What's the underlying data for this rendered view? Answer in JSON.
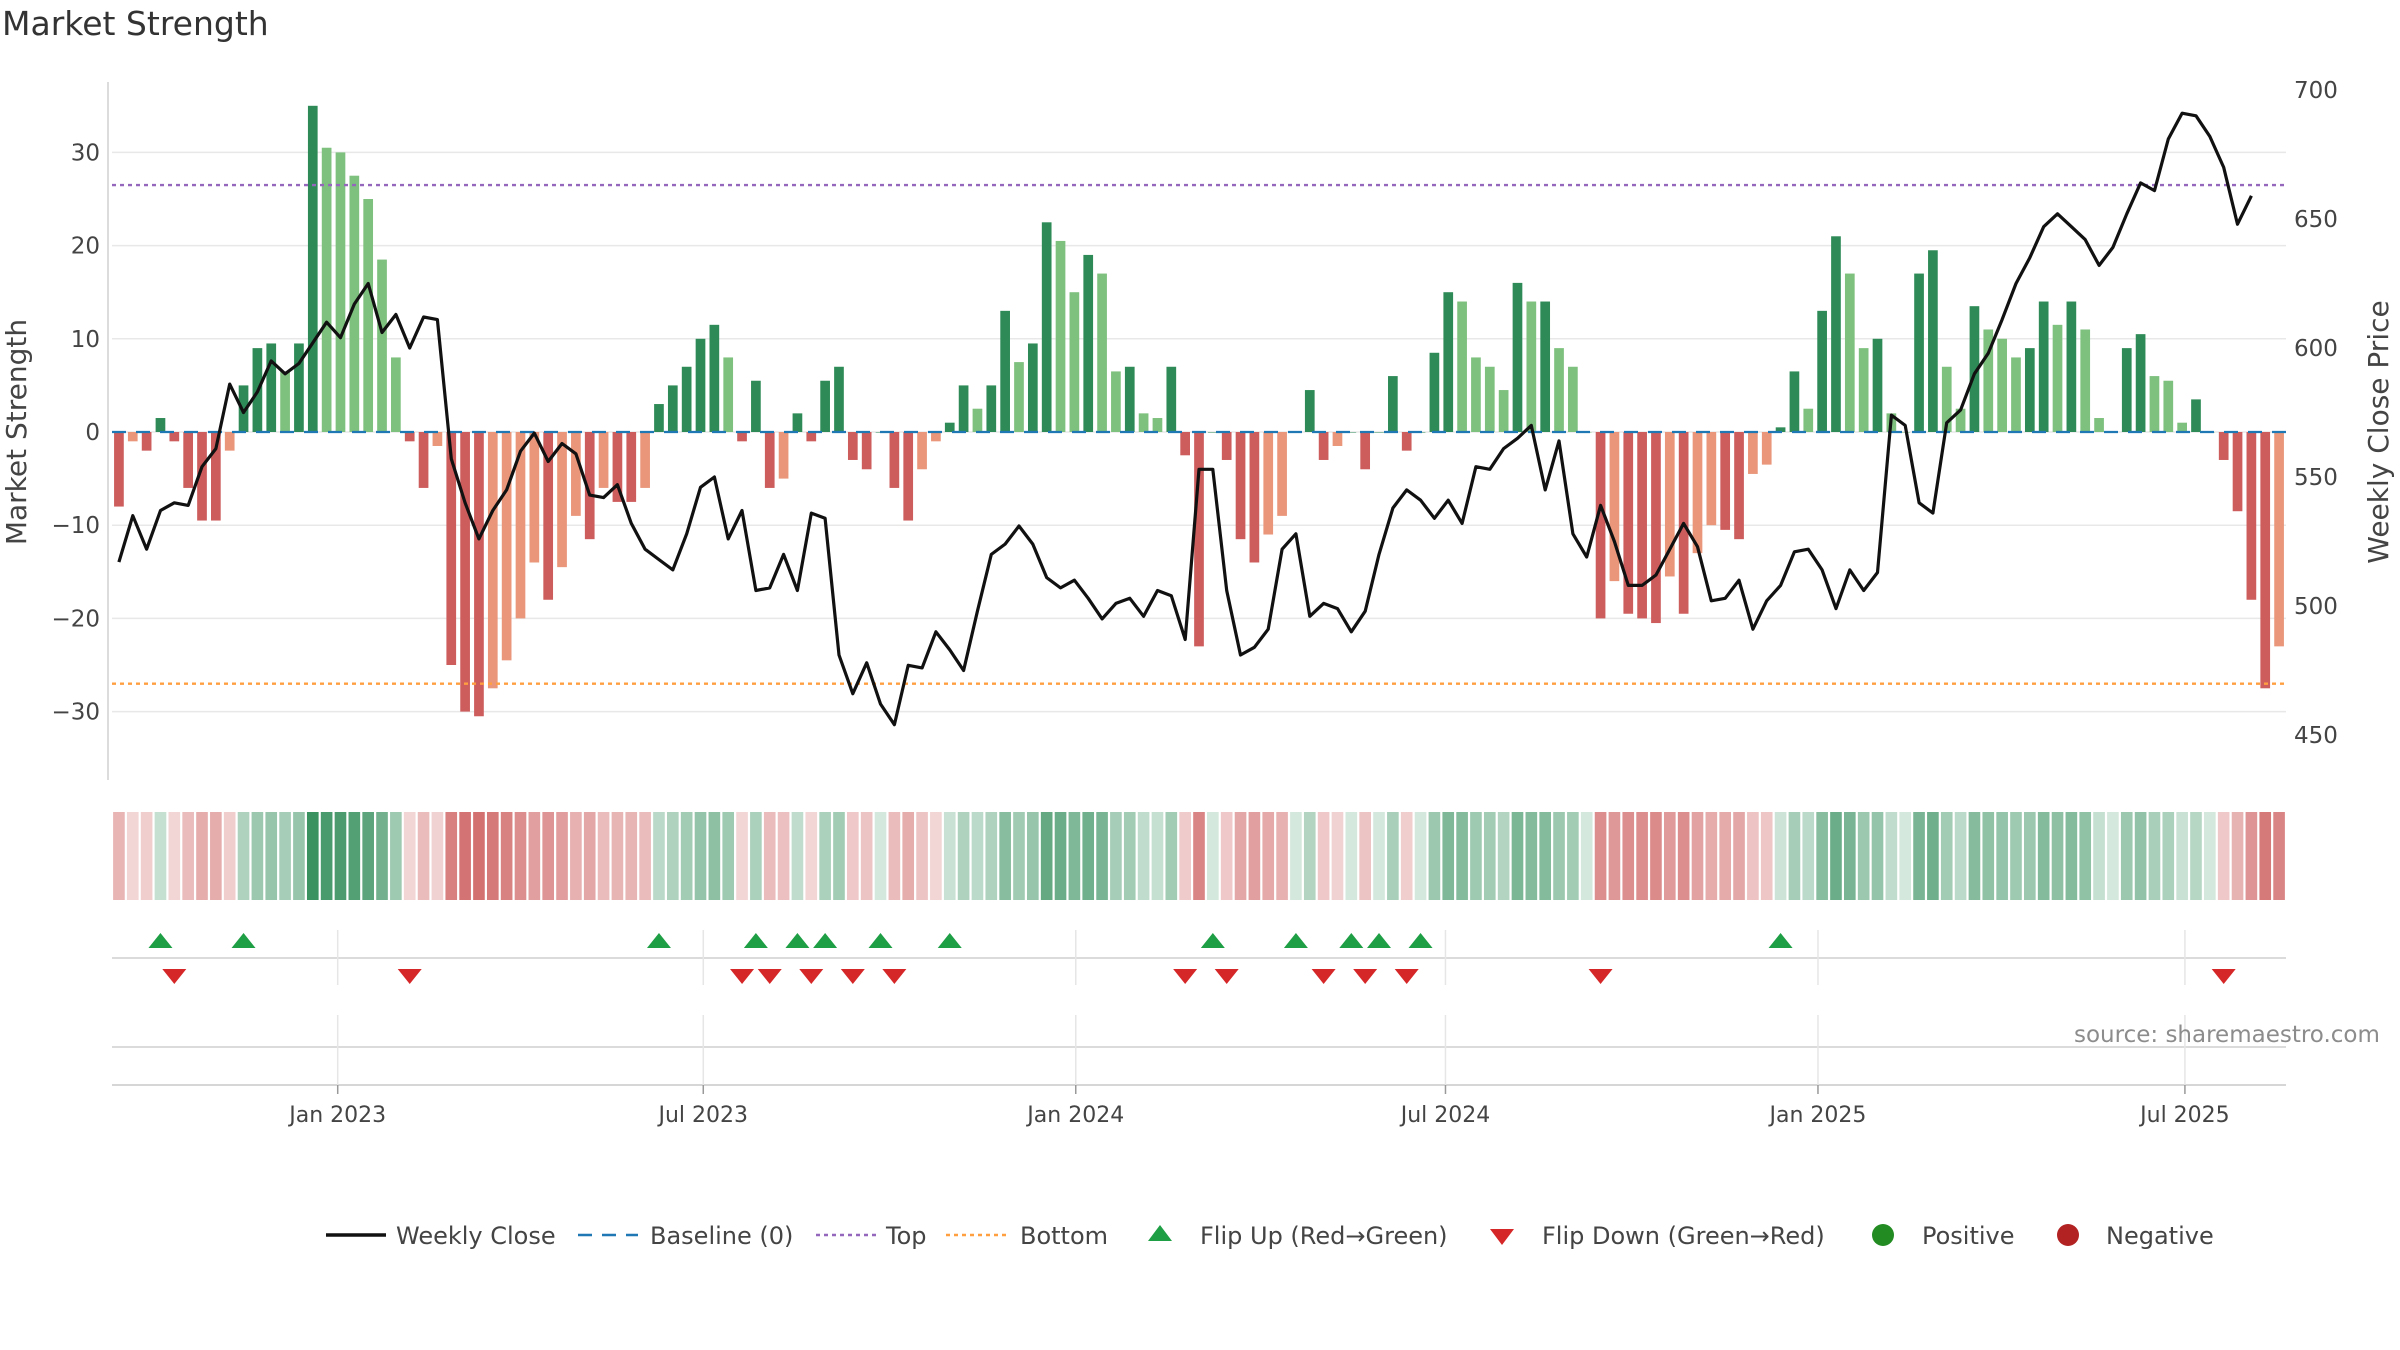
{
  "chart_data": {
    "type": "bar+line",
    "title": "Market Strength",
    "ylabel_left": "Market Strength",
    "ylabel_right": "Weekly Close Price",
    "source": "source: sharemaestro.com",
    "y_left_ticks": [
      30,
      20,
      10,
      0,
      -10,
      -20,
      -30
    ],
    "y_left_tick_labels": [
      "30",
      "20",
      "10",
      "0",
      "−10",
      "−20",
      "−30"
    ],
    "ylim_left": [
      -37.5,
      37.5
    ],
    "y_right_ticks": [
      700,
      650,
      600,
      550,
      500,
      450
    ],
    "ylim_right": [
      440,
      705
    ],
    "top_level": 26.5,
    "bottom_level": -27,
    "x_tick_labels": [
      "Jan 2023",
      "Jul 2023",
      "Jan 2024",
      "Jul 2024",
      "Jan 2025",
      "Jul 2025"
    ],
    "x_tick_positions": [
      16.3,
      42.7,
      69.6,
      96.3,
      123.2,
      149.7
    ],
    "strength": [
      -8,
      -1,
      -2,
      1.5,
      -1,
      -6,
      -9.5,
      -9.5,
      -2,
      5,
      9,
      9.5,
      6.5,
      9.5,
      35,
      30.5,
      30,
      27.5,
      25,
      18.5,
      8,
      -1,
      -6,
      -1.5,
      -25,
      -30,
      -30.5,
      -27.5,
      -24.5,
      -20,
      -14,
      -18,
      -14.5,
      -9,
      -11.5,
      -6,
      -7.5,
      -7.5,
      -6,
      3,
      5,
      7,
      10,
      11.5,
      8,
      -1,
      5.5,
      -6,
      -5,
      2,
      -1,
      5.5,
      7,
      -3,
      -4,
      0,
      -6,
      -9.5,
      -4,
      -1,
      1,
      5,
      2.5,
      5,
      13,
      7.5,
      9.5,
      22.5,
      20.5,
      15,
      19,
      17,
      6.5,
      7,
      2,
      1.5,
      7,
      -2.5,
      -23,
      0,
      -3,
      -11.5,
      -14,
      -11,
      -9,
      0,
      4.5,
      -3,
      -1.5,
      0,
      -4,
      0,
      6,
      -2,
      0,
      8.5,
      15,
      14,
      8,
      7,
      4.5,
      16,
      14,
      14,
      9,
      7,
      0,
      -20,
      -16,
      -19.5,
      -20,
      -20.5,
      -15.5,
      -19.5,
      -13,
      -10,
      -10.5,
      -11.5,
      -4.5,
      -3.5,
      0.5,
      6.5,
      2.5,
      13,
      21,
      17,
      9,
      10,
      2,
      0,
      17,
      19.5,
      7,
      2.5,
      13.5,
      11,
      10,
      8,
      9,
      14,
      11.5,
      14,
      11,
      1.5,
      0,
      9,
      10.5,
      6,
      5.5,
      1,
      3.5,
      0,
      -3,
      -8.5,
      -18,
      -27.5,
      -23
    ],
    "weekly_close": [
      517,
      535,
      522,
      537,
      540,
      539,
      554,
      561,
      586,
      575,
      583,
      595,
      590,
      594,
      602,
      610,
      604,
      617,
      625,
      606,
      613,
      600,
      612,
      611,
      557,
      540,
      526,
      537,
      545,
      560,
      567,
      556,
      563,
      559,
      543,
      542,
      547,
      532,
      522,
      518,
      514,
      528,
      546,
      550,
      526,
      537,
      506,
      507,
      520,
      506,
      536,
      534,
      481,
      466,
      478,
      462,
      454,
      477,
      476,
      490,
      483,
      475,
      498,
      520,
      524,
      531,
      524,
      511,
      507,
      510,
      503,
      495,
      501,
      503,
      496,
      506,
      504,
      487,
      553,
      553,
      506,
      481,
      484,
      491,
      522,
      528,
      496,
      501,
      499,
      490,
      498,
      520,
      538,
      545,
      541,
      534,
      541,
      532,
      554,
      553,
      561,
      565,
      570,
      545,
      564,
      528,
      519,
      539,
      525,
      508,
      508,
      512,
      522,
      532,
      523,
      502,
      503,
      510,
      491,
      502,
      508,
      521,
      522,
      514,
      499,
      514,
      506,
      513,
      574,
      570,
      540,
      536,
      571,
      576,
      590,
      598,
      611,
      625,
      635,
      647,
      652,
      647,
      642,
      632,
      639,
      652,
      664,
      661,
      681,
      691,
      690,
      682,
      670,
      648,
      659
    ]
  },
  "legend": {
    "weekly_close": "Weekly Close",
    "baseline": "Baseline (0)",
    "top": "Top",
    "bottom": "Bottom",
    "flip_up": "Flip Up (Red→Green)",
    "flip_down": "Flip Down (Green→Red)",
    "positive": "Positive",
    "negative": "Negative"
  },
  "colors": {
    "pos_strong": "#2e8b57",
    "pos_light": "#7ec07e",
    "neg_strong": "#cd5c5c",
    "neg_light": "#e9967a",
    "line": "#111111",
    "baseline": "#1f77b4",
    "top": "#9467bd",
    "bottom": "#ff9f40",
    "flip_up": "#1e9e45",
    "flip_down": "#d62728",
    "positive_dot": "#228b22",
    "negative_dot": "#b22222",
    "grid": "#e8e8e8"
  }
}
